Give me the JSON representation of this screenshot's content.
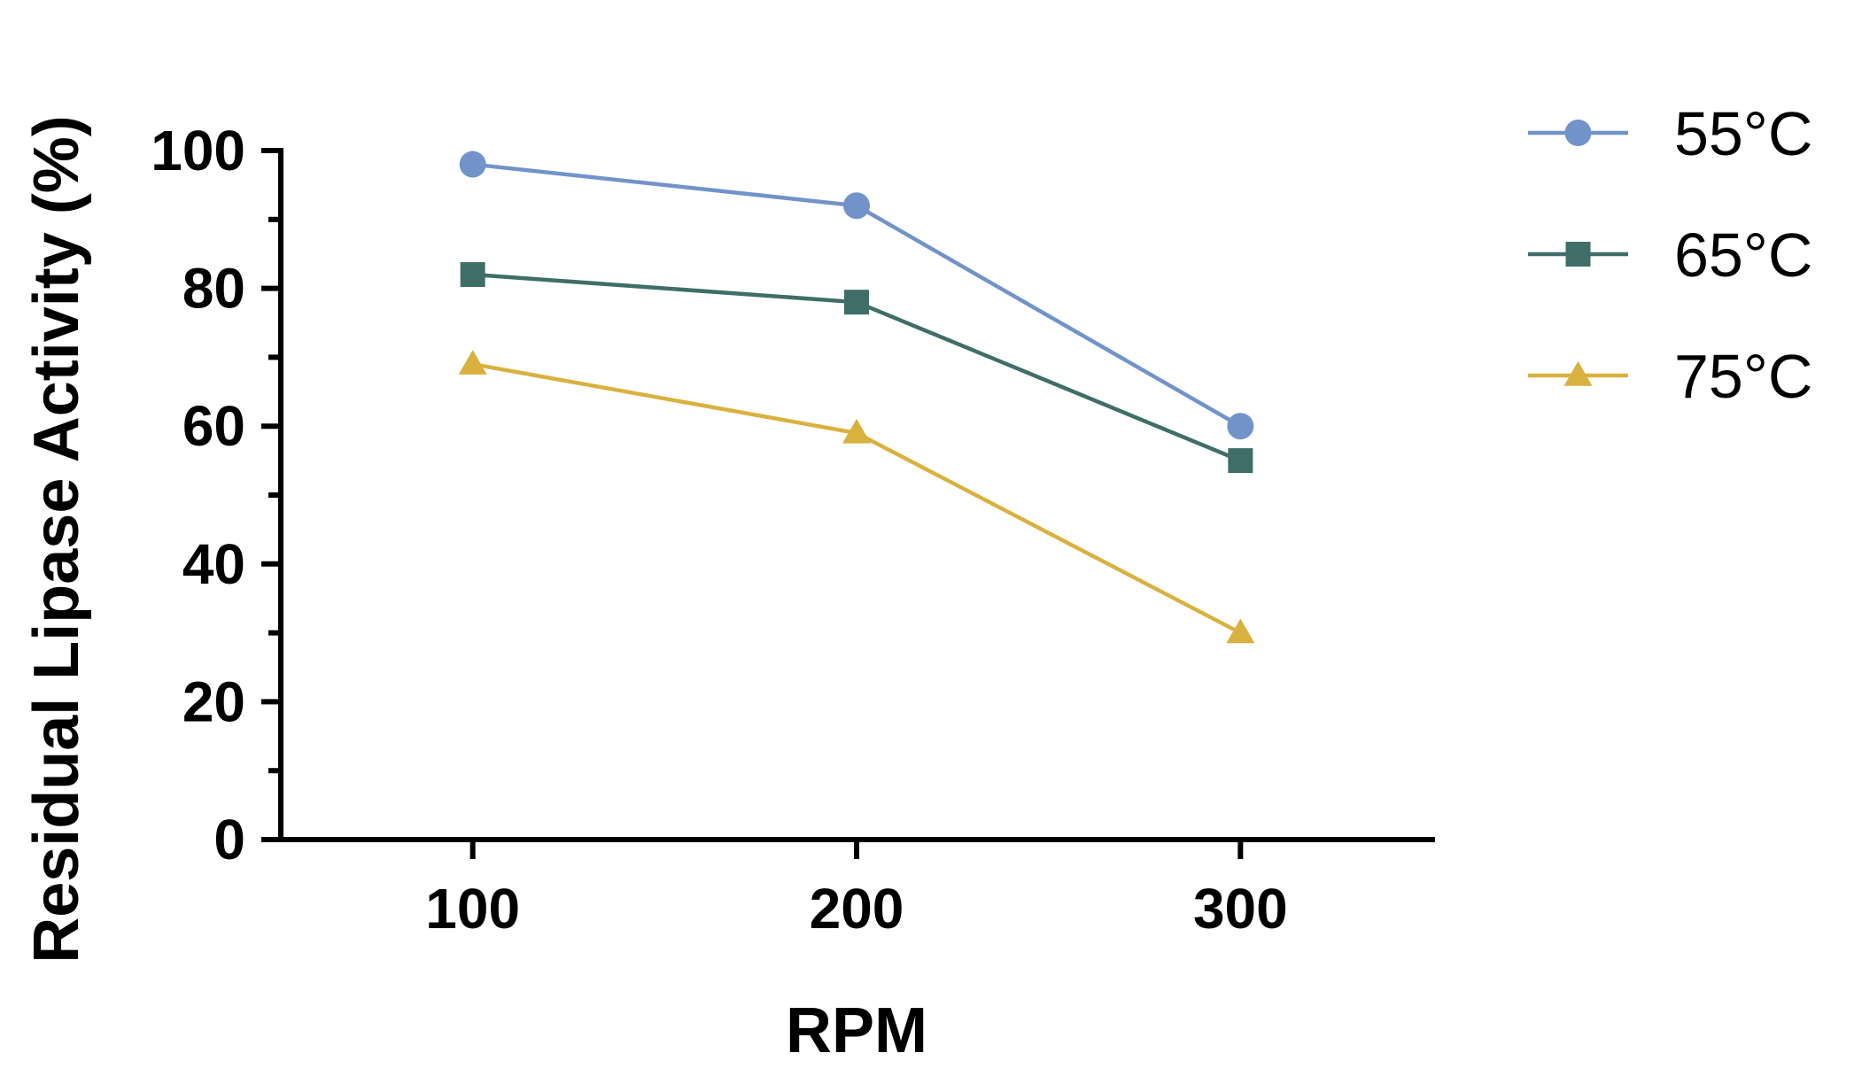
{
  "chart_data": {
    "type": "line",
    "x": [
      100,
      200,
      300
    ],
    "series": [
      {
        "name": "55°C",
        "values": [
          98,
          92,
          60
        ],
        "color": "#7293c9",
        "marker": "circle"
      },
      {
        "name": "65°C",
        "values": [
          82,
          78,
          55
        ],
        "color": "#3f6e68",
        "marker": "square"
      },
      {
        "name": "75°C",
        "values": [
          69,
          59,
          30
        ],
        "color": "#d9b13f",
        "marker": "triangle"
      }
    ],
    "xlabel": "RPM",
    "ylabel": "Residual Lipase Activity (%)",
    "xlim": [
      50,
      350
    ],
    "ylim": [
      0,
      100
    ],
    "xticks": [
      100,
      200,
      300
    ],
    "yticks": [
      0,
      20,
      40,
      60,
      80,
      100
    ],
    "grid": false,
    "legend_position": "top-right"
  }
}
